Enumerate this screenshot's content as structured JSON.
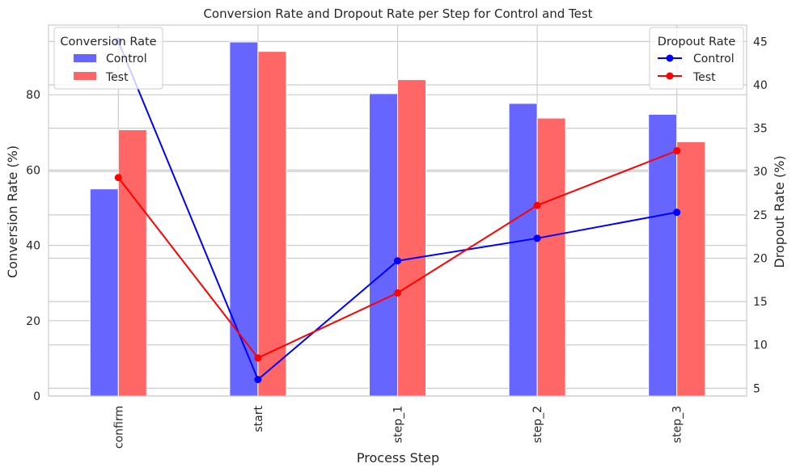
{
  "chart_data": {
    "type": "bar+line",
    "title": "Conversion Rate and Dropout Rate per Step for Control and Test",
    "xlabel": "Process Step",
    "ylabel_left": "Conversion Rate (%)",
    "ylabel_right": "Dropout Rate (%)",
    "categories": [
      "confirm",
      "start",
      "step_1",
      "step_2",
      "step_3"
    ],
    "left_axis": {
      "ylim": [
        0,
        98.5
      ],
      "ticks": [
        0,
        20,
        40,
        60,
        80
      ]
    },
    "right_axis": {
      "ylim": [
        4.1,
        46.9
      ],
      "ticks": [
        5,
        10,
        15,
        20,
        25,
        30,
        35,
        40,
        45
      ]
    },
    "grid": true,
    "bar_series": [
      {
        "name": "Control",
        "color": "#6666ff",
        "values": [
          55.0,
          94.0,
          80.3,
          77.7,
          74.8
        ]
      },
      {
        "name": "Test",
        "color": "#ff6666",
        "values": [
          70.7,
          91.5,
          84.0,
          73.8,
          67.5
        ]
      }
    ],
    "line_series": [
      {
        "name": "Control",
        "color": "#0000ff",
        "values": [
          45.0,
          6.0,
          19.7,
          22.3,
          25.3
        ]
      },
      {
        "name": "Test",
        "color": "#ff0000",
        "values": [
          29.3,
          8.5,
          16.0,
          26.1,
          32.4
        ]
      }
    ],
    "legend_left": {
      "title": "Conversion Rate",
      "placement": "top-left",
      "entries": [
        "Control",
        "Test"
      ]
    },
    "legend_right": {
      "title": "Dropout Rate",
      "placement": "top-right",
      "entries": [
        "Control",
        "Test"
      ]
    }
  }
}
